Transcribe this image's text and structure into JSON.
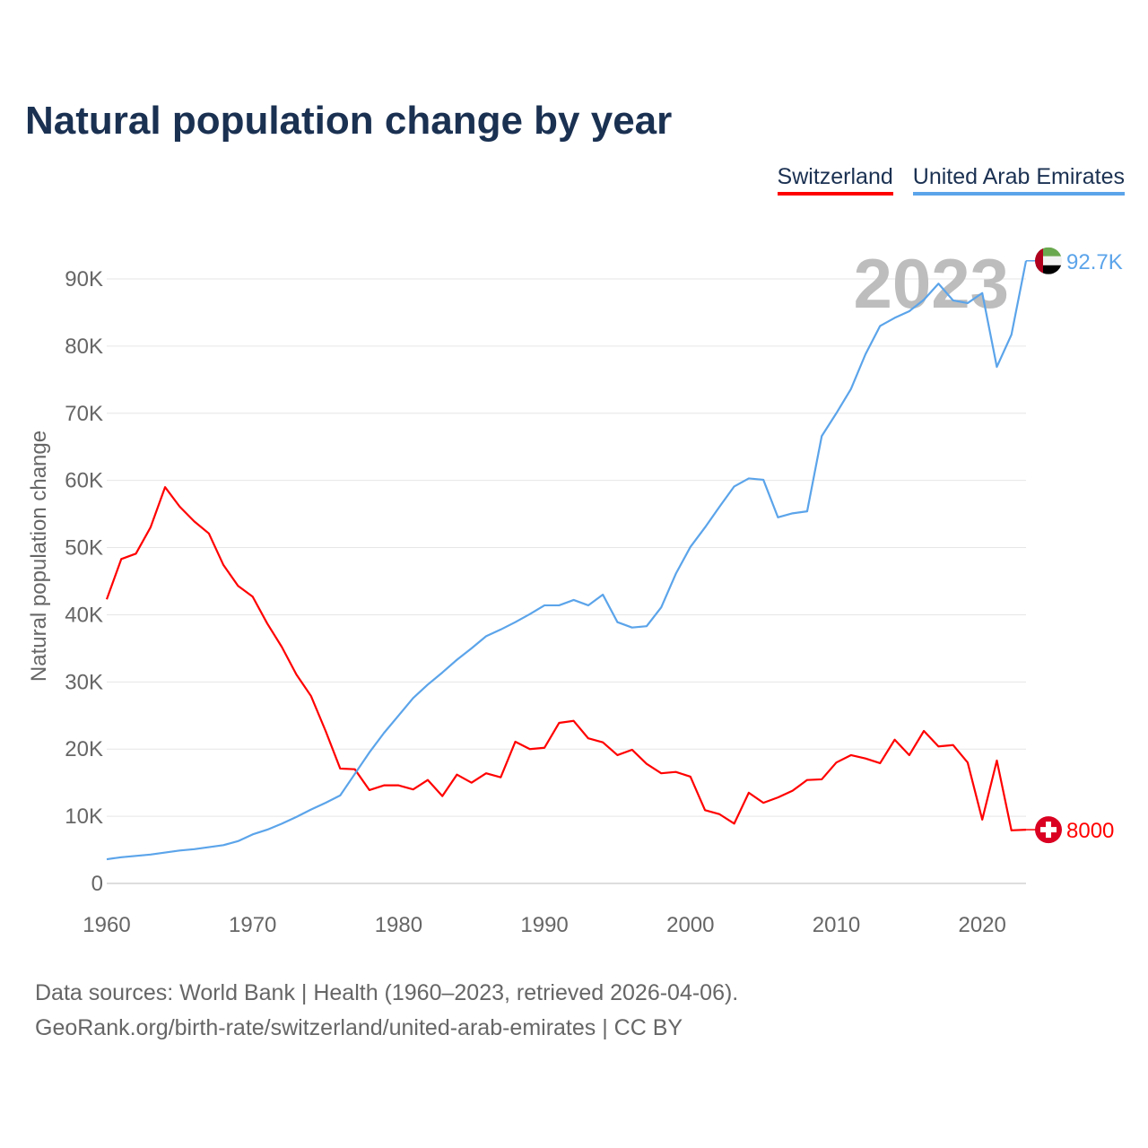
{
  "title": "Natural population change by year",
  "footer": {
    "line1": "Data sources: World Bank | Health (1960–2023, retrieved 2026-04-06).",
    "line2": "GeoRank.org/birth-rate/switzerland/united-arab-emirates | CC BY"
  },
  "chart_data": {
    "type": "line",
    "title": "Natural population change by year",
    "xlabel": "",
    "ylabel": "Natural population change",
    "xlim": [
      1960,
      2023
    ],
    "ylim": [
      0,
      90000
    ],
    "grid": true,
    "legend_placement": "top-right",
    "watermark_year": "2023",
    "y_ticks": [
      {
        "v": 0,
        "label": "0"
      },
      {
        "v": 10000,
        "label": "10K"
      },
      {
        "v": 20000,
        "label": "20K"
      },
      {
        "v": 30000,
        "label": "30K"
      },
      {
        "v": 40000,
        "label": "40K"
      },
      {
        "v": 50000,
        "label": "50K"
      },
      {
        "v": 60000,
        "label": "60K"
      },
      {
        "v": 70000,
        "label": "70K"
      },
      {
        "v": 80000,
        "label": "80K"
      },
      {
        "v": 90000,
        "label": "90K"
      }
    ],
    "x_ticks": [
      {
        "v": 1960,
        "label": "1960"
      },
      {
        "v": 1970,
        "label": "1970"
      },
      {
        "v": 1980,
        "label": "1980"
      },
      {
        "v": 1990,
        "label": "1990"
      },
      {
        "v": 2000,
        "label": "2000"
      },
      {
        "v": 2010,
        "label": "2010"
      },
      {
        "v": 2020,
        "label": "2020"
      }
    ],
    "x_start": 1960,
    "series": [
      {
        "name": "Switzerland",
        "color": "#ff0000",
        "end_label": "8000",
        "flag": "switzerland",
        "values": [
          42300,
          48300,
          49100,
          53000,
          59000,
          56100,
          53900,
          52100,
          47400,
          44300,
          42700,
          38700,
          35200,
          31100,
          27900,
          22700,
          17100,
          17000,
          13900,
          14600,
          14600,
          14000,
          15400,
          13000,
          16200,
          15000,
          16400,
          15800,
          21100,
          20000,
          20200,
          23900,
          24200,
          21600,
          21000,
          19100,
          19900,
          17800,
          16400,
          16600,
          15900,
          10900,
          10300,
          8900,
          13500,
          12000,
          12800,
          13800,
          15400,
          15500,
          18000,
          19100,
          18600,
          17900,
          21400,
          19100,
          22700,
          20400,
          20600,
          18000,
          9500,
          18300,
          7900,
          8000
        ]
      },
      {
        "name": "United Arab Emirates",
        "color": "#5ba4ea",
        "end_label": "92.7K",
        "flag": "uae",
        "values": [
          3600,
          3900,
          4100,
          4300,
          4600,
          4900,
          5100,
          5400,
          5700,
          6300,
          7300,
          8000,
          8900,
          9900,
          11000,
          12000,
          13100,
          16300,
          19500,
          22400,
          25000,
          27600,
          29600,
          31400,
          33300,
          35000,
          36800,
          37800,
          38900,
          40100,
          41400,
          41400,
          42200,
          41400,
          43000,
          38900,
          38100,
          38300,
          41100,
          46100,
          50100,
          53000,
          56100,
          59100,
          60300,
          60100,
          54500,
          55100,
          55400,
          66600,
          70000,
          73600,
          78800,
          83000,
          84200,
          85200,
          86900,
          89300,
          86800,
          86400,
          87900,
          76900,
          81700,
          92700
        ]
      }
    ]
  }
}
